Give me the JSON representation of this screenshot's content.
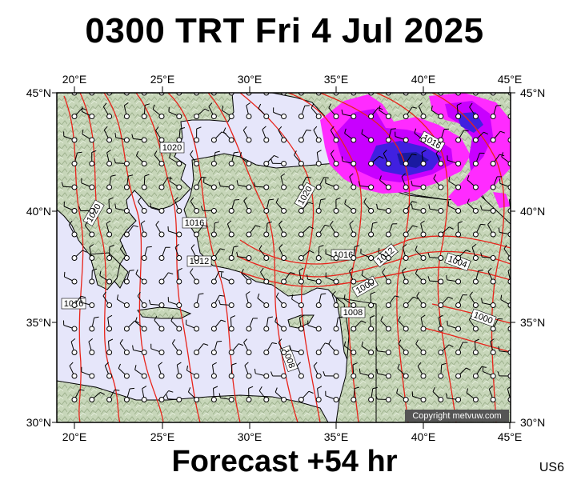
{
  "title": "0300 TRT Fri 4 Jul 2025",
  "footer": "Forecast +54 hr",
  "code": "US6",
  "copyright": "Copyright metvuw.com",
  "axes": {
    "top_lon_labels": [
      "20°E",
      "25°E",
      "30°E",
      "35°E",
      "40°E",
      "45°E"
    ],
    "bottom_lon_labels": [
      "20°E",
      "25°E",
      "30°E",
      "35°E",
      "40°E",
      "45°E"
    ],
    "left_lat_labels": [
      "45°N",
      "40°N",
      "35°N",
      "30°N"
    ],
    "right_lat_labels": [
      "45°N",
      "40°N",
      "35°N",
      "30°N"
    ]
  },
  "isobar_labels": [
    "1020",
    "1016",
    "1020",
    "1020",
    "1016",
    "1012",
    "1016",
    "1016",
    "1012",
    "1008",
    "1008",
    "1004",
    "1000",
    "1008"
  ],
  "colors": {
    "sea": "#e6e6fa",
    "land": "#c4d3b6",
    "isobar": "#e8231a",
    "precip_light": "#ff2bff",
    "precip_mid": "#c800ff",
    "precip_heavy": "#4020e0",
    "precip_core": "#1a1aa0"
  }
}
